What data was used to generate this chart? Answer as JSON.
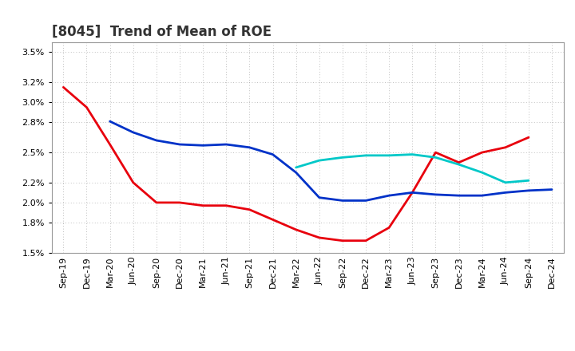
{
  "title": "[8045]  Trend of Mean of ROE",
  "ylim": [
    0.015,
    0.036
  ],
  "yticks": [
    0.015,
    0.018,
    0.02,
    0.022,
    0.025,
    0.028,
    0.03,
    0.032,
    0.035
  ],
  "ytick_labels": [
    "1.5%",
    "1.8%",
    "2.0%",
    "2.2%",
    "2.5%",
    "2.8%",
    "3.0%",
    "3.2%",
    "3.5%"
  ],
  "x_labels": [
    "Sep-19",
    "Dec-19",
    "Mar-20",
    "Jun-20",
    "Sep-20",
    "Dec-20",
    "Mar-21",
    "Jun-21",
    "Sep-21",
    "Dec-21",
    "Mar-22",
    "Jun-22",
    "Sep-22",
    "Dec-22",
    "Mar-23",
    "Jun-23",
    "Sep-23",
    "Dec-23",
    "Mar-24",
    "Jun-24",
    "Sep-24",
    "Dec-24"
  ],
  "series_3yr": [
    0.0315,
    0.0295,
    0.0258,
    0.022,
    0.02,
    0.02,
    0.0197,
    0.0197,
    0.0193,
    0.0183,
    0.0173,
    0.0165,
    0.0162,
    0.0162,
    0.0175,
    0.021,
    0.025,
    0.024,
    0.025,
    0.0255,
    0.0265,
    null
  ],
  "series_5yr": [
    null,
    null,
    0.0281,
    0.027,
    0.0262,
    0.0258,
    0.0257,
    0.0258,
    0.0255,
    0.0248,
    0.023,
    0.0205,
    0.0202,
    0.0202,
    0.0207,
    0.021,
    0.0208,
    0.0207,
    0.0207,
    0.021,
    0.0212,
    0.0213
  ],
  "series_7yr": [
    null,
    null,
    null,
    null,
    null,
    null,
    null,
    null,
    null,
    null,
    0.0235,
    0.0242,
    0.0245,
    0.0247,
    0.0247,
    0.0248,
    0.0245,
    0.0238,
    0.023,
    0.022,
    0.0222,
    null
  ],
  "series_10yr": [
    null,
    null,
    null,
    null,
    null,
    null,
    null,
    null,
    null,
    null,
    null,
    null,
    null,
    null,
    null,
    null,
    null,
    null,
    null,
    null,
    null,
    null
  ],
  "color_3yr": "#e8000d",
  "color_5yr": "#0032c8",
  "color_7yr": "#00c8c8",
  "color_10yr": "#00a000",
  "bg_color": "#ffffff",
  "plot_bg_color": "#ffffff",
  "grid_color": "#aaaaaa",
  "linewidth": 2.0,
  "title_fontsize": 12,
  "legend_fontsize": 9,
  "tick_fontsize": 8
}
